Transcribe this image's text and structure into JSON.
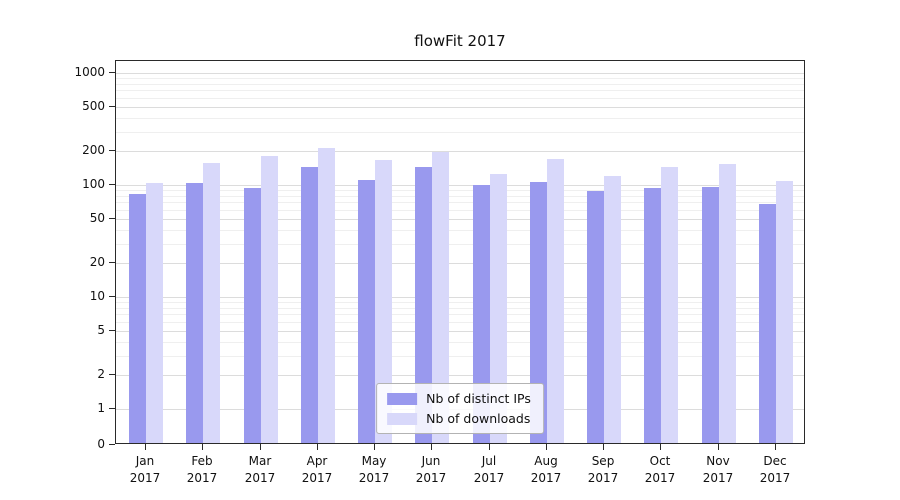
{
  "chart_data": {
    "type": "bar",
    "title": "flowFit 2017",
    "categories": [
      "Jan 2017",
      "Feb 2017",
      "Mar 2017",
      "Apr 2017",
      "May 2017",
      "Jun 2017",
      "Jul 2017",
      "Aug 2017",
      "Sep 2017",
      "Oct 2017",
      "Nov 2017",
      "Dec 2017"
    ],
    "series": [
      {
        "name": "Nb of distinct IPs",
        "color": "#9999ee",
        "values": [
          80,
          100,
          90,
          140,
          107,
          138,
          95,
          102,
          85,
          90,
          92,
          65
        ]
      },
      {
        "name": "Nb of downloads",
        "color": "#d8d8fa",
        "values": [
          100,
          150,
          175,
          205,
          160,
          190,
          120,
          165,
          115,
          140,
          148,
          105
        ]
      }
    ],
    "yscale": "symlog",
    "yticks": [
      0,
      1,
      2,
      5,
      10,
      20,
      50,
      100,
      200,
      500,
      1000
    ],
    "ylim": [
      0,
      1280
    ],
    "xlabel": "",
    "ylabel": "",
    "grid": true,
    "legend_position": "lower center"
  }
}
